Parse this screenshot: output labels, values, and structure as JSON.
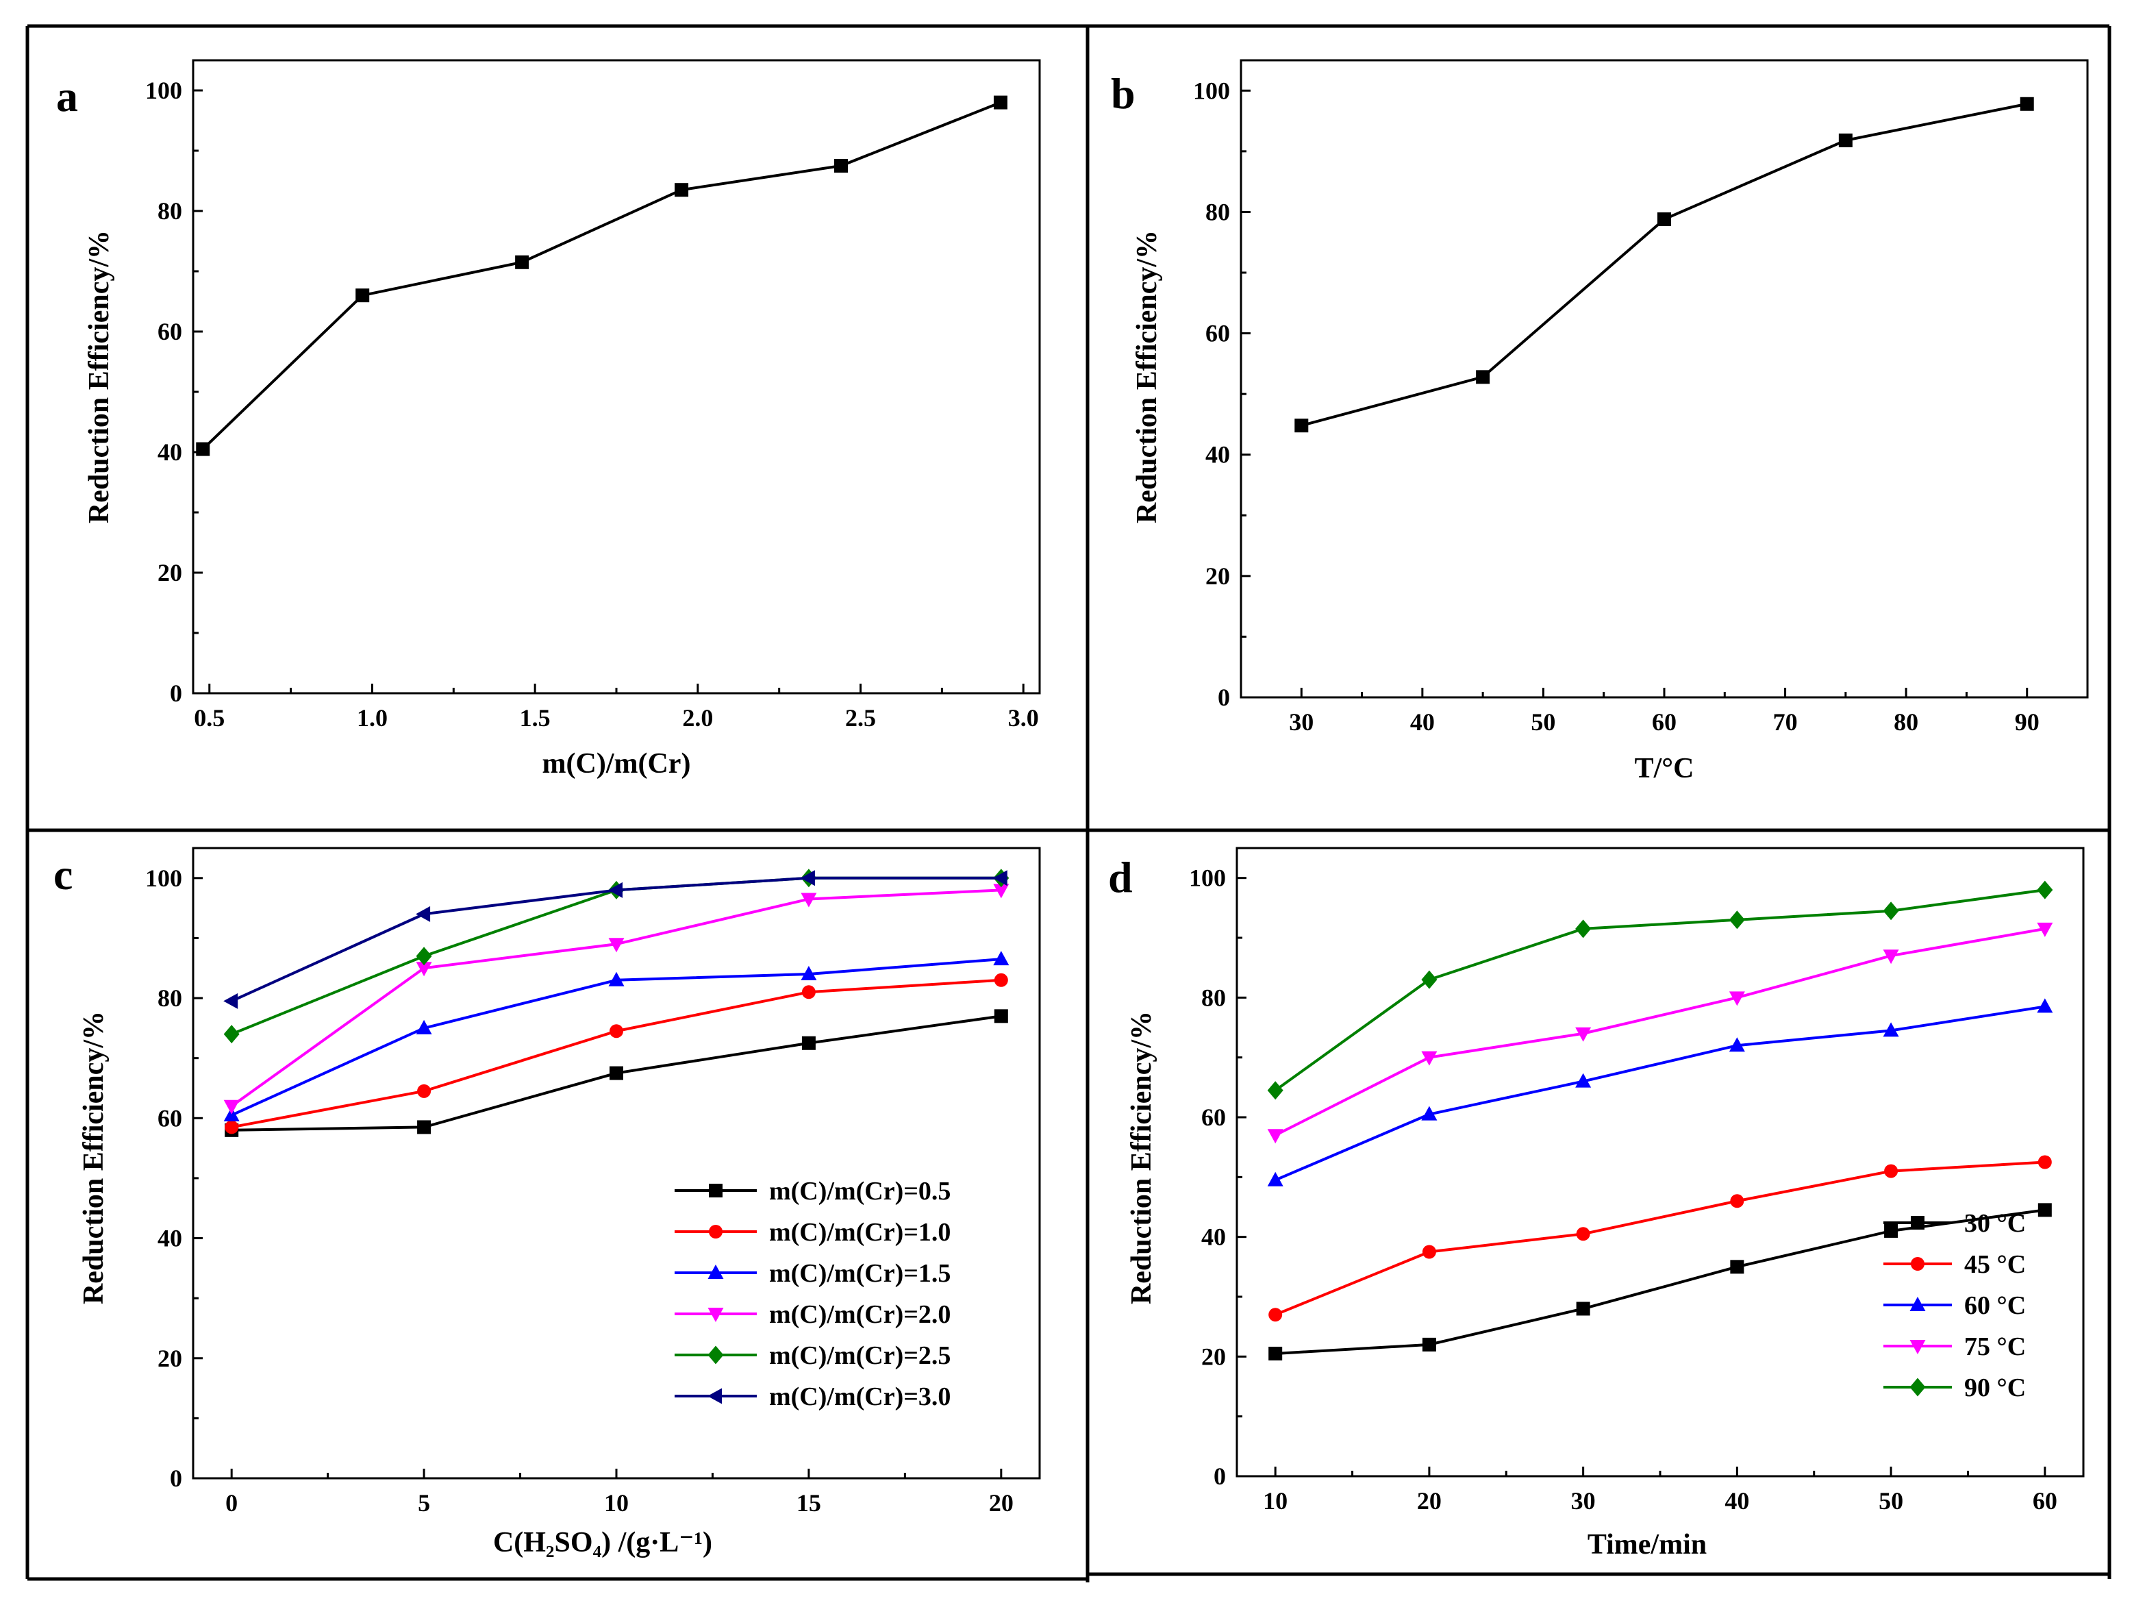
{
  "chart_data": [
    {
      "panel": "a",
      "type": "line",
      "xlabel": "m(C)/m(Cr)",
      "ylabel": "Reduction Efficiency/%",
      "xlim": [
        0.45,
        3.05
      ],
      "ylim": [
        0,
        105
      ],
      "xticks": [
        "0.5",
        "1.0",
        "1.5",
        "2.0",
        "2.5",
        "3.0"
      ],
      "xtick_values": [
        0.5,
        1.0,
        1.5,
        2.0,
        2.5,
        3.0
      ],
      "yticks": [
        "0",
        "20",
        "40",
        "60",
        "80",
        "100"
      ],
      "ytick_values": [
        0,
        20,
        40,
        60,
        80,
        100
      ],
      "grid": false,
      "series": [
        {
          "color": "#000000",
          "marker": "square",
          "x": [
            0.48,
            0.97,
            1.46,
            1.95,
            2.44,
            2.93
          ],
          "y": [
            40.5,
            66.0,
            71.5,
            83.5,
            87.5,
            98.0
          ]
        }
      ]
    },
    {
      "panel": "b",
      "type": "line",
      "xlabel": "T/°C",
      "ylabel": "Reduction Efficiency/%",
      "xlim": [
        25,
        95
      ],
      "ylim": [
        0,
        105
      ],
      "xticks": [
        "30",
        "40",
        "50",
        "60",
        "70",
        "80",
        "90"
      ],
      "xtick_values": [
        30,
        40,
        50,
        60,
        70,
        80,
        90
      ],
      "yticks": [
        "0",
        "20",
        "40",
        "60",
        "80",
        "100"
      ],
      "ytick_values": [
        0,
        20,
        40,
        60,
        80,
        100
      ],
      "grid": false,
      "series": [
        {
          "color": "#000000",
          "marker": "square",
          "x": [
            30,
            45,
            60,
            75,
            90
          ],
          "y": [
            44.8,
            52.8,
            78.8,
            91.8,
            97.8
          ]
        }
      ]
    },
    {
      "panel": "c",
      "type": "line",
      "xlabel": "C(H₂SO₄) /(g·L⁻¹)",
      "ylabel": "Reduction Efficiency/%",
      "xlim": [
        -1,
        21
      ],
      "ylim": [
        0,
        105
      ],
      "xticks": [
        "0",
        "5",
        "10",
        "15",
        "20"
      ],
      "xtick_values": [
        0,
        5,
        10,
        15,
        20
      ],
      "yticks": [
        "0",
        "20",
        "40",
        "60",
        "80",
        "100"
      ],
      "ytick_values": [
        0,
        20,
        40,
        60,
        80,
        100
      ],
      "grid": false,
      "legend_position": "lower-right",
      "x": [
        0,
        5,
        10,
        15,
        20
      ],
      "series": [
        {
          "name": "m(C)/m(Cr)=0.5",
          "color": "#000000",
          "marker": "square",
          "values": [
            58.0,
            58.5,
            67.5,
            72.5,
            77.0
          ]
        },
        {
          "name": "m(C)/m(Cr)=1.0",
          "color": "#ff0000",
          "marker": "circle",
          "values": [
            58.5,
            64.5,
            74.5,
            81.0,
            83.0
          ]
        },
        {
          "name": "m(C)/m(Cr)=1.5",
          "color": "#0000ff",
          "marker": "triangle-up",
          "values": [
            60.5,
            75.0,
            83.0,
            84.0,
            86.5
          ]
        },
        {
          "name": "m(C)/m(Cr)=2.0",
          "color": "#ff00ff",
          "marker": "triangle-down",
          "values": [
            62.0,
            85.0,
            89.0,
            96.5,
            98.0
          ]
        },
        {
          "name": "m(C)/m(Cr)=2.5",
          "color": "#008000",
          "marker": "diamond",
          "values": [
            74.0,
            87.0,
            98.0,
            100.0,
            100.0
          ]
        },
        {
          "name": "m(C)/m(Cr)=3.0",
          "color": "#000080",
          "marker": "triangle-left",
          "values": [
            79.5,
            94.0,
            98.0,
            100.0,
            100.0
          ]
        }
      ]
    },
    {
      "panel": "d",
      "type": "line",
      "xlabel": "Time/min",
      "ylabel": "Reduction Efficiency/%",
      "xlim": [
        7.5,
        62.5
      ],
      "ylim": [
        0,
        105
      ],
      "xticks": [
        "10",
        "20",
        "30",
        "40",
        "50",
        "60"
      ],
      "xtick_values": [
        10,
        20,
        30,
        40,
        50,
        60
      ],
      "yticks": [
        "0",
        "20",
        "40",
        "60",
        "80",
        "100"
      ],
      "ytick_values": [
        0,
        20,
        40,
        60,
        80,
        100
      ],
      "grid": false,
      "legend_position": "lower-right",
      "x": [
        10,
        20,
        30,
        40,
        50,
        60
      ],
      "series": [
        {
          "name": "30 °C",
          "color": "#000000",
          "marker": "square",
          "values": [
            20.5,
            22.0,
            28.0,
            35.0,
            41.0,
            44.5
          ]
        },
        {
          "name": "45 °C",
          "color": "#ff0000",
          "marker": "circle",
          "values": [
            27.0,
            37.5,
            40.5,
            46.0,
            51.0,
            52.5
          ]
        },
        {
          "name": "60 °C",
          "color": "#0000ff",
          "marker": "triangle-up",
          "values": [
            49.5,
            60.5,
            66.0,
            72.0,
            74.5,
            78.5
          ]
        },
        {
          "name": "75 °C",
          "color": "#ff00ff",
          "marker": "triangle-down",
          "values": [
            57.0,
            70.0,
            74.0,
            80.0,
            87.0,
            91.5
          ]
        },
        {
          "name": "90 °C",
          "color": "#008000",
          "marker": "diamond",
          "values": [
            64.5,
            83.0,
            91.5,
            93.0,
            94.5,
            98.0
          ]
        }
      ]
    }
  ]
}
